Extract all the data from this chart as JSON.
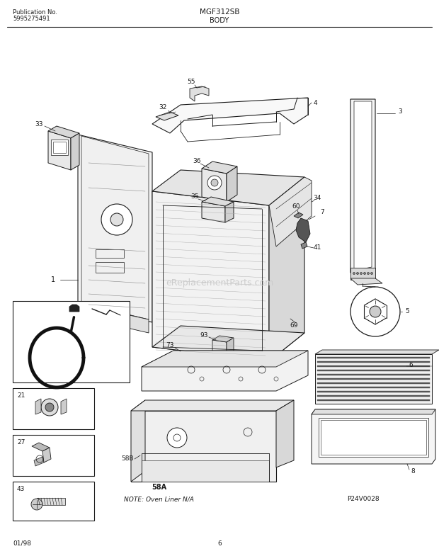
{
  "title_center": "MGF312SB",
  "title_sub": "BODY",
  "pub_no_label": "Publication No.",
  "pub_no_value": "5995275491",
  "page_num": "6",
  "date": "01/98",
  "part_code": "P24V0028",
  "note": "NOTE: Oven Liner N/A",
  "bg_color": "#ffffff",
  "line_color": "#1a1a1a",
  "watermark": "eReplacementParts.com",
  "fig_w": 6.2,
  "fig_h": 7.85,
  "dpi": 100
}
